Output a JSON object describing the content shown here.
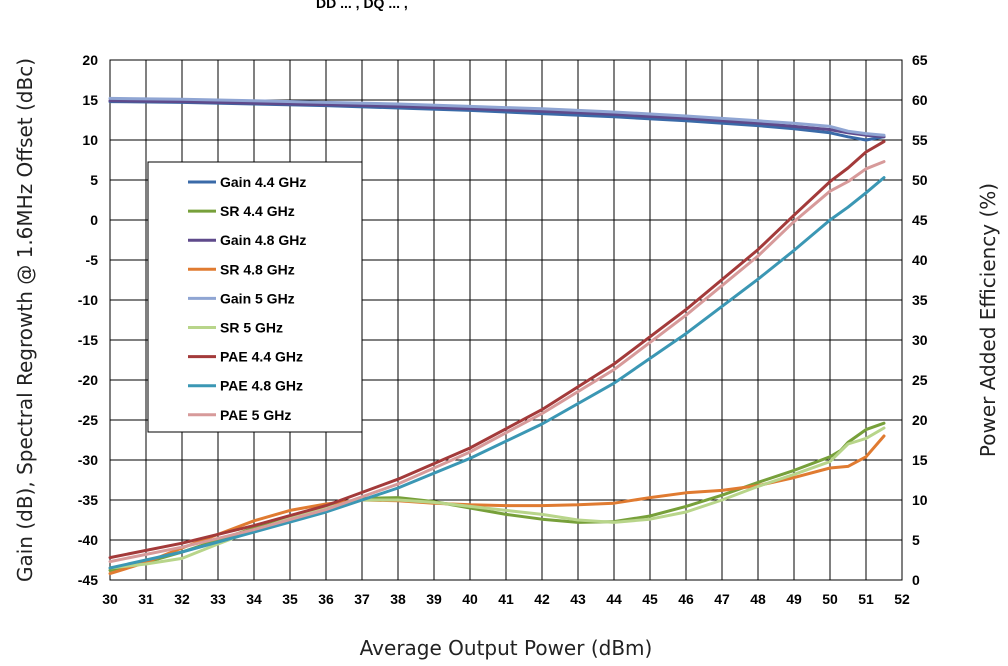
{
  "header_fragment": "DD ... , DQ ... ,",
  "chart_data": {
    "type": "line",
    "xlabel": "Average Output Power (dBm)",
    "ylabel_left": "Gain (dB), Spectral Regrowth @ 1.6MHz Offset (dBc)",
    "ylabel_right": "Power Added Efficiency (%)",
    "xlim": [
      30,
      52
    ],
    "ylim_left": [
      -45,
      20
    ],
    "ylim_right": [
      0,
      65
    ],
    "x_ticks": [
      30,
      31,
      32,
      33,
      34,
      35,
      36,
      37,
      38,
      39,
      40,
      41,
      42,
      43,
      44,
      45,
      46,
      47,
      48,
      49,
      50,
      51,
      52
    ],
    "y_left_ticks": [
      20,
      15,
      10,
      5,
      0,
      -5,
      -10,
      -15,
      -20,
      -25,
      -30,
      -35,
      -40,
      -45
    ],
    "y_right_ticks": [
      65,
      60,
      55,
      50,
      45,
      40,
      35,
      30,
      25,
      20,
      15,
      10,
      5,
      0
    ],
    "grid": true,
    "legend_position": "left-center",
    "series": [
      {
        "name": "Gain 4.4 GHz",
        "axis": "left",
        "color": "#3a6aa8",
        "x": [
          30,
          32,
          34,
          36,
          38,
          40,
          42,
          44,
          46,
          48,
          49,
          50,
          50.5,
          51,
          51.5
        ],
        "y": [
          14.8,
          14.7,
          14.5,
          14.3,
          14.0,
          13.7,
          13.3,
          12.9,
          12.4,
          11.8,
          11.4,
          10.9,
          10.4,
          10.0,
          10.4
        ]
      },
      {
        "name": "SR 4.4 GHz",
        "axis": "left",
        "color": "#77a03a",
        "x": [
          30,
          31,
          32,
          33,
          34,
          35,
          36,
          37,
          38,
          39,
          40,
          41,
          42,
          43,
          44,
          45,
          46,
          47,
          48,
          49,
          50,
          50.3,
          50.5,
          51,
          51.5
        ],
        "y": [
          -43.8,
          -42.8,
          -41.5,
          -40.0,
          -38.5,
          -37.2,
          -35.8,
          -34.8,
          -34.7,
          -35.2,
          -36.0,
          -36.8,
          -37.4,
          -37.8,
          -37.7,
          -37.0,
          -35.8,
          -34.4,
          -32.8,
          -31.3,
          -29.6,
          -28.8,
          -27.8,
          -26.2,
          -25.4
        ]
      },
      {
        "name": "Gain 4.8 GHz",
        "axis": "left",
        "color": "#5f4a8b",
        "x": [
          30,
          32,
          34,
          36,
          38,
          40,
          42,
          44,
          46,
          48,
          49,
          50,
          50.5,
          51,
          51.5
        ],
        "y": [
          14.9,
          14.8,
          14.6,
          14.4,
          14.2,
          13.9,
          13.6,
          13.2,
          12.7,
          12.1,
          11.7,
          11.3,
          10.9,
          10.6,
          10.4
        ]
      },
      {
        "name": "SR 4.8 GHz",
        "axis": "left",
        "color": "#e07b31",
        "x": [
          30,
          31,
          32,
          33,
          34,
          35,
          36,
          37,
          38,
          39,
          40,
          41,
          42,
          43,
          44,
          45,
          46,
          47,
          48,
          49,
          50,
          50.5,
          51,
          51.5
        ],
        "y": [
          -44.2,
          -42.8,
          -41.0,
          -39.3,
          -37.6,
          -36.3,
          -35.5,
          -35.0,
          -35.1,
          -35.4,
          -35.6,
          -35.7,
          -35.7,
          -35.6,
          -35.4,
          -34.7,
          -34.1,
          -33.8,
          -33.2,
          -32.2,
          -31.0,
          -30.8,
          -29.6,
          -27.0
        ]
      },
      {
        "name": "Gain 5 GHz",
        "axis": "left",
        "color": "#8fa5d3",
        "x": [
          30,
          32,
          34,
          36,
          38,
          40,
          42,
          44,
          46,
          48,
          49,
          50,
          50.5,
          51,
          51.5
        ],
        "y": [
          15.2,
          15.1,
          14.9,
          14.7,
          14.5,
          14.2,
          13.9,
          13.5,
          13.0,
          12.4,
          12.1,
          11.7,
          11.1,
          10.8,
          10.6
        ]
      },
      {
        "name": "SR 5 GHz",
        "axis": "left",
        "color": "#b8d58a",
        "x": [
          30,
          31,
          32,
          33,
          34,
          35,
          36,
          37,
          38,
          39,
          40,
          41,
          42,
          43,
          44,
          45,
          46,
          47,
          48,
          49,
          50,
          50.5,
          51,
          51.5
        ],
        "y": [
          -43.5,
          -43.0,
          -42.3,
          -40.5,
          -38.8,
          -37.3,
          -36.0,
          -35.0,
          -35.0,
          -35.3,
          -35.8,
          -36.3,
          -36.8,
          -37.5,
          -37.8,
          -37.4,
          -36.5,
          -35.0,
          -33.3,
          -31.8,
          -30.2,
          -28.0,
          -27.3,
          -26.0
        ]
      },
      {
        "name": "PAE 4.4 GHz",
        "axis": "right",
        "color": "#a33a3a",
        "x": [
          30,
          32,
          34,
          36,
          38,
          40,
          42,
          44,
          46,
          48,
          49,
          50,
          50.5,
          51,
          51.5
        ],
        "y": [
          2.8,
          4.6,
          6.8,
          9.3,
          12.6,
          16.5,
          21.3,
          27.0,
          33.8,
          41.3,
          45.6,
          49.8,
          51.5,
          53.5,
          54.8
        ]
      },
      {
        "name": "PAE 4.8 GHz",
        "axis": "right",
        "color": "#3b97b4",
        "x": [
          30,
          32,
          34,
          36,
          38,
          40,
          42,
          44,
          46,
          48,
          49,
          50,
          50.5,
          51,
          51.5
        ],
        "y": [
          1.5,
          3.5,
          6.0,
          8.5,
          11.5,
          15.2,
          19.5,
          24.6,
          30.8,
          37.6,
          41.2,
          45.0,
          46.6,
          48.4,
          50.3
        ]
      },
      {
        "name": "PAE 5 GHz",
        "axis": "right",
        "color": "#d79a9a",
        "x": [
          30,
          32,
          34,
          36,
          38,
          40,
          42,
          44,
          46,
          48,
          49,
          50,
          50.5,
          51,
          51.5
        ],
        "y": [
          2.3,
          4.1,
          6.3,
          8.8,
          12.0,
          16.0,
          20.8,
          26.3,
          33.1,
          40.5,
          44.8,
          48.6,
          49.8,
          51.4,
          52.3
        ]
      }
    ]
  }
}
